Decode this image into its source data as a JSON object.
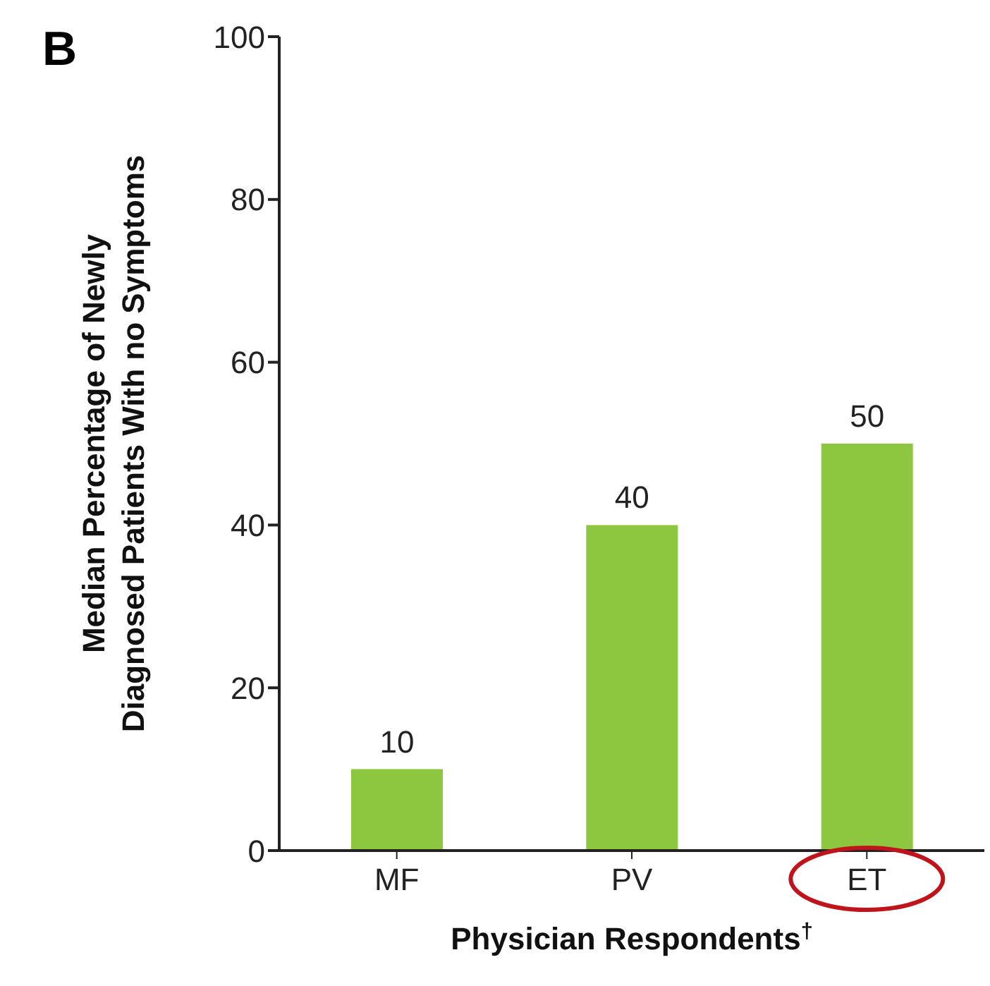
{
  "chart_data": {
    "type": "bar",
    "title": "B",
    "xlabel": "Physician Respondents$^{†}$",
    "ylabel": "Median Percentage of Newly Diagnosed Patients With no Symptoms",
    "categories": [
      "MF",
      "PV",
      "ET"
    ],
    "values": [
      10,
      40,
      50
    ],
    "color": "#8dc63f",
    "ylim": [
      0,
      100
    ],
    "yticks": [
      0,
      20,
      40,
      60,
      80,
      100
    ],
    "data_labels": true,
    "grid": false,
    "legend": false
  }
}
